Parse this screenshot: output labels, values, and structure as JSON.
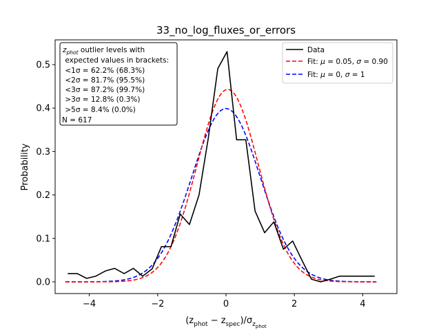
{
  "chart_data": {
    "type": "line",
    "title": "33_no_log_fluxes_or_errors",
    "xlabel_parts": [
      "(z",
      "phot",
      " − z",
      "spec",
      ")/σ",
      "z",
      "phot"
    ],
    "ylabel": "Probability",
    "xlim": [
      -5.0,
      5.0
    ],
    "ylim": [
      -0.027,
      0.557
    ],
    "xticks": [
      -4,
      -2,
      0,
      2,
      4
    ],
    "xtick_labels": [
      "−4",
      "−2",
      "0",
      "2",
      "4"
    ],
    "yticks": [
      0.0,
      0.1,
      0.2,
      0.3,
      0.4,
      0.5
    ],
    "ytick_labels": [
      "0.0",
      "0.1",
      "0.2",
      "0.3",
      "0.4",
      "0.5"
    ],
    "grid": false,
    "legend_placement": "top-right",
    "series": [
      {
        "name": "Data",
        "color": "#000000",
        "style": "solid",
        "x": [
          -4.63,
          -4.35,
          -4.08,
          -3.81,
          -3.53,
          -3.26,
          -2.98,
          -2.71,
          -2.44,
          -2.16,
          -1.89,
          -1.61,
          -1.34,
          -1.07,
          -0.79,
          -0.52,
          -0.24,
          0.03,
          0.31,
          0.58,
          0.85,
          1.13,
          1.4,
          1.68,
          1.95,
          2.22,
          2.5,
          2.77,
          3.05,
          3.32,
          3.59,
          3.87,
          4.14,
          4.35
        ],
        "y": [
          0.019,
          0.019,
          0.008,
          0.013,
          0.025,
          0.031,
          0.019,
          0.031,
          0.013,
          0.03,
          0.081,
          0.081,
          0.156,
          0.132,
          0.2,
          0.33,
          0.491,
          0.53,
          0.327,
          0.327,
          0.163,
          0.113,
          0.138,
          0.075,
          0.094,
          0.05,
          0.006,
          0.0,
          0.006,
          0.013,
          0.013,
          0.013,
          0.013,
          0.013
        ]
      },
      {
        "name_parts": [
          "Fit: ",
          "μ",
          " = 0.05, ",
          "σ",
          " = 0.90"
        ],
        "color": "#ff0000",
        "style": "dashed",
        "gauss": {
          "mu": 0.05,
          "sigma": 0.9,
          "amplitude": 0.443
        },
        "x_range": [
          -4.7,
          4.4
        ]
      },
      {
        "name_parts": [
          "Fit: ",
          "μ",
          " = 0, ",
          "σ",
          " = 1"
        ],
        "color": "#0000ff",
        "style": "dashed",
        "gauss": {
          "mu": 0.0,
          "sigma": 1.0,
          "amplitude": 0.3989
        },
        "x_range": [
          -4.7,
          4.4
        ]
      }
    ],
    "legend": {
      "entries": [
        "Data"
      ]
    },
    "info_box": {
      "lines": [
        {
          "parts": [
            "z",
            "phot",
            " outlier levels with"
          ],
          "sub_index": 1
        },
        {
          "parts": [
            " expected values in brackets:"
          ]
        },
        {
          "parts": [
            " <1σ = 62.2% (68.3%)"
          ]
        },
        {
          "parts": [
            " <2σ = 81.7% (95.5%)"
          ]
        },
        {
          "parts": [
            " <3σ = 87.2% (99.7%)"
          ]
        },
        {
          "parts": [
            " >3σ = 12.8% (0.3%)"
          ]
        },
        {
          "parts": [
            " >5σ = 8.4% (0.0%)"
          ]
        },
        {
          "parts": [
            "N = 617"
          ]
        }
      ]
    }
  }
}
